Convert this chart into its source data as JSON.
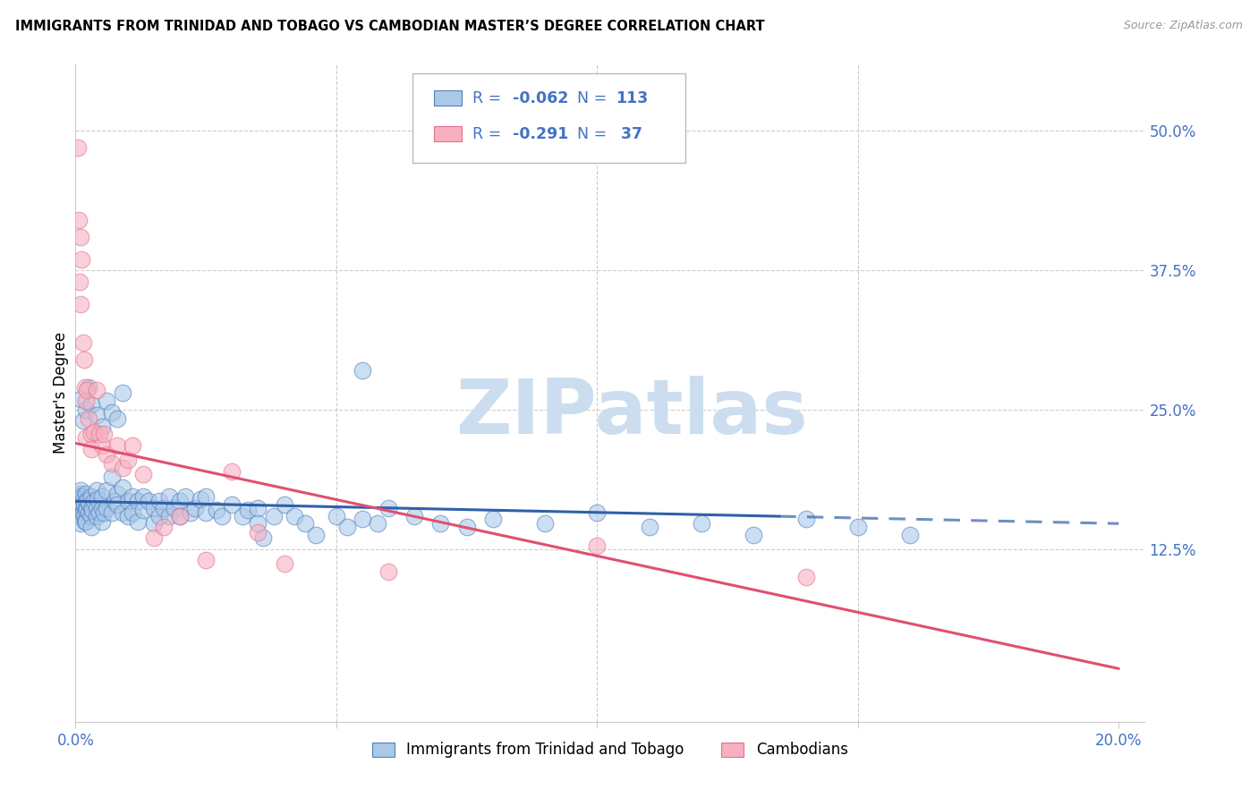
{
  "title": "IMMIGRANTS FROM TRINIDAD AND TOBAGO VS CAMBODIAN MASTER’S DEGREE CORRELATION CHART",
  "source": "Source: ZipAtlas.com",
  "ylabel": "Master's Degree",
  "xlim": [
    0.0,
    0.205
  ],
  "ylim": [
    -0.03,
    0.56
  ],
  "plot_ylim": [
    -0.03,
    0.56
  ],
  "blue_color": "#aac8e8",
  "pink_color": "#f8b0c0",
  "blue_line_color": "#3060a8",
  "pink_line_color": "#e05070",
  "blue_edge_color": "#5080c0",
  "pink_edge_color": "#e07090",
  "legend_text_color": "#4472c4",
  "blue_r": "-0.062",
  "blue_n": "113",
  "pink_r": "-0.291",
  "pink_n": "37",
  "blue_label": "Immigrants from Trinidad and Tobago",
  "pink_label": "Cambodians",
  "watermark_text": "ZIPatlas",
  "watermark_color": "#ccddf0",
  "ytick_vals": [
    0.0,
    0.125,
    0.25,
    0.375,
    0.5
  ],
  "ytick_labels": [
    "",
    "12.5%",
    "25.0%",
    "37.5%",
    "50.0%"
  ],
  "xtick_vals": [
    0.0,
    0.05,
    0.1,
    0.15,
    0.2
  ],
  "xtick_labels": [
    "0.0%",
    "",
    "",
    "",
    "20.0%"
  ],
  "grid_color": "#cccccc",
  "spine_color": "#cccccc",
  "blue_trend_x": [
    0.0,
    0.2
  ],
  "blue_trend_y": [
    0.168,
    0.148
  ],
  "blue_trend_solid_end": 0.135,
  "pink_trend_x": [
    0.0,
    0.2
  ],
  "pink_trend_y": [
    0.22,
    0.018
  ],
  "blue_x": [
    0.0004,
    0.0005,
    0.0006,
    0.0007,
    0.0008,
    0.0009,
    0.001,
    0.001,
    0.001,
    0.001,
    0.001,
    0.0012,
    0.0013,
    0.0014,
    0.0015,
    0.0016,
    0.0017,
    0.0018,
    0.002,
    0.002,
    0.002,
    0.002,
    0.0022,
    0.0024,
    0.0025,
    0.0027,
    0.003,
    0.003,
    0.003,
    0.003,
    0.0032,
    0.0035,
    0.004,
    0.004,
    0.004,
    0.0042,
    0.0045,
    0.005,
    0.005,
    0.005,
    0.0055,
    0.006,
    0.006,
    0.007,
    0.007,
    0.0075,
    0.008,
    0.008,
    0.009,
    0.009,
    0.01,
    0.01,
    0.011,
    0.011,
    0.012,
    0.012,
    0.013,
    0.013,
    0.014,
    0.015,
    0.015,
    0.016,
    0.016,
    0.017,
    0.018,
    0.018,
    0.019,
    0.02,
    0.02,
    0.021,
    0.022,
    0.023,
    0.024,
    0.025,
    0.025,
    0.027,
    0.028,
    0.03,
    0.032,
    0.033,
    0.035,
    0.036,
    0.038,
    0.04,
    0.042,
    0.044,
    0.046,
    0.05,
    0.052,
    0.055,
    0.058,
    0.06,
    0.065,
    0.07,
    0.075,
    0.08,
    0.09,
    0.1,
    0.11,
    0.12,
    0.13,
    0.14,
    0.15,
    0.16,
    0.001,
    0.0015,
    0.002,
    0.0025,
    0.003,
    0.004,
    0.005,
    0.006,
    0.007,
    0.008,
    0.009,
    0.035,
    0.055
  ],
  "blue_y": [
    0.17,
    0.165,
    0.172,
    0.168,
    0.16,
    0.175,
    0.178,
    0.17,
    0.162,
    0.155,
    0.148,
    0.172,
    0.165,
    0.158,
    0.17,
    0.155,
    0.165,
    0.15,
    0.175,
    0.168,
    0.16,
    0.15,
    0.162,
    0.168,
    0.158,
    0.165,
    0.172,
    0.162,
    0.155,
    0.145,
    0.16,
    0.168,
    0.178,
    0.162,
    0.155,
    0.17,
    0.158,
    0.172,
    0.162,
    0.15,
    0.158,
    0.178,
    0.162,
    0.19,
    0.158,
    0.168,
    0.175,
    0.165,
    0.18,
    0.158,
    0.168,
    0.155,
    0.172,
    0.158,
    0.168,
    0.15,
    0.172,
    0.16,
    0.168,
    0.162,
    0.148,
    0.155,
    0.168,
    0.162,
    0.172,
    0.155,
    0.162,
    0.168,
    0.155,
    0.172,
    0.158,
    0.162,
    0.17,
    0.158,
    0.172,
    0.16,
    0.155,
    0.165,
    0.155,
    0.16,
    0.162,
    0.135,
    0.155,
    0.165,
    0.155,
    0.148,
    0.138,
    0.155,
    0.145,
    0.152,
    0.148,
    0.162,
    0.155,
    0.148,
    0.145,
    0.152,
    0.148,
    0.158,
    0.145,
    0.148,
    0.138,
    0.152,
    0.145,
    0.138,
    0.26,
    0.24,
    0.25,
    0.27,
    0.255,
    0.245,
    0.235,
    0.258,
    0.248,
    0.242,
    0.265,
    0.148,
    0.285
  ],
  "pink_x": [
    0.0004,
    0.0006,
    0.0008,
    0.001,
    0.001,
    0.0012,
    0.0014,
    0.0016,
    0.0018,
    0.002,
    0.002,
    0.0022,
    0.0025,
    0.003,
    0.003,
    0.0035,
    0.004,
    0.0045,
    0.005,
    0.0055,
    0.006,
    0.007,
    0.008,
    0.009,
    0.01,
    0.011,
    0.013,
    0.015,
    0.017,
    0.02,
    0.025,
    0.03,
    0.035,
    0.04,
    0.06,
    0.1,
    0.14
  ],
  "pink_y": [
    0.485,
    0.42,
    0.365,
    0.405,
    0.345,
    0.385,
    0.31,
    0.295,
    0.27,
    0.258,
    0.225,
    0.268,
    0.242,
    0.228,
    0.215,
    0.23,
    0.268,
    0.228,
    0.218,
    0.228,
    0.21,
    0.202,
    0.218,
    0.198,
    0.205,
    0.218,
    0.192,
    0.135,
    0.145,
    0.155,
    0.115,
    0.195,
    0.14,
    0.112,
    0.105,
    0.128,
    0.1
  ]
}
